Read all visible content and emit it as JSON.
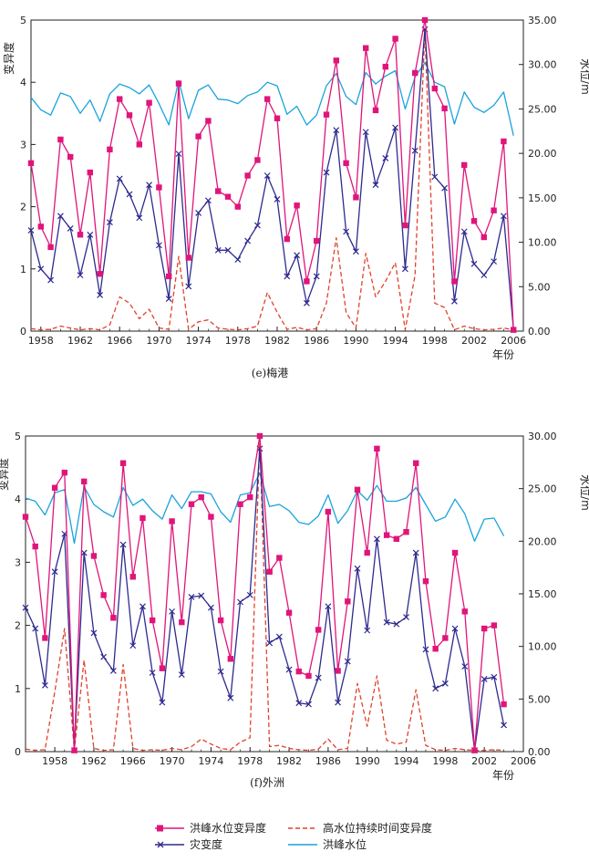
{
  "legend": {
    "items": [
      {
        "label": "洪峰水位变异度",
        "color": "#e0157a",
        "symbol": "square-line",
        "dash": "none"
      },
      {
        "label": "高水位持续时间变异度",
        "color": "#e2412b",
        "symbol": "line",
        "dash": "dashed"
      },
      {
        "label": "灾变度",
        "color": "#2e2a8e",
        "symbol": "x-line",
        "dash": "none"
      },
      {
        "label": "洪峰水位",
        "color": "#1aa3dc",
        "symbol": "line",
        "dash": "none"
      }
    ]
  },
  "chart_data": [
    {
      "type": "line",
      "caption": "(e)梅港",
      "xlabel": "年份",
      "ylabel_left": "变异度",
      "ylabel_right": "水位/m",
      "xlim": [
        1957,
        2007
      ],
      "ylim_left": [
        0,
        5
      ],
      "ylim_right": [
        0,
        35
      ],
      "x_ticks": [
        "1958",
        "1962",
        "1966",
        "1970",
        "1974",
        "1978",
        "1982",
        "1986",
        "1990",
        "1994",
        "1998",
        "2002",
        "2006"
      ],
      "y_left_ticks": [
        "0",
        "1",
        "2",
        "3",
        "4",
        "5"
      ],
      "y_right_ticks": [
        "0.00",
        "5.00",
        "10.00",
        "15.00",
        "20.00",
        "25.00",
        "30.00",
        "35.00"
      ],
      "x": [
        1957,
        1958,
        1959,
        1960,
        1961,
        1962,
        1963,
        1964,
        1965,
        1966,
        1967,
        1968,
        1969,
        1970,
        1971,
        1972,
        1973,
        1974,
        1975,
        1976,
        1977,
        1978,
        1979,
        1980,
        1981,
        1982,
        1983,
        1984,
        1985,
        1986,
        1987,
        1988,
        1989,
        1990,
        1991,
        1992,
        1993,
        1994,
        1995,
        1996,
        1997,
        1998,
        1999,
        2000,
        2001,
        2002,
        2003,
        2004,
        2005,
        2006,
        2007
      ],
      "series": [
        {
          "name": "洪峰水位变异度",
          "axis": "left",
          "color": "#e0157a",
          "values": [
            2.7,
            1.68,
            1.35,
            3.08,
            2.8,
            1.55,
            2.55,
            0.92,
            2.92,
            3.73,
            3.47,
            3.0,
            3.67,
            2.31,
            0.88,
            3.98,
            1.18,
            3.13,
            3.38,
            2.25,
            2.16,
            2.0,
            2.5,
            2.75,
            3.73,
            3.42,
            1.48,
            2.02,
            0.8,
            1.45,
            3.48,
            4.35,
            2.7,
            2.15,
            4.55,
            3.55,
            4.25,
            4.7,
            1.7,
            4.15,
            5.0,
            3.9,
            3.58,
            0.8,
            2.67,
            1.77,
            1.51,
            1.94,
            3.05,
            0.02,
            null
          ]
        },
        {
          "name": "灾变度",
          "axis": "left",
          "color": "#2e2a8e",
          "values": [
            1.62,
            1.0,
            0.82,
            1.85,
            1.65,
            0.9,
            1.55,
            0.58,
            1.75,
            2.45,
            2.2,
            1.82,
            2.35,
            1.38,
            0.52,
            2.85,
            0.72,
            1.9,
            2.1,
            1.3,
            1.3,
            1.15,
            1.45,
            1.7,
            2.5,
            2.12,
            0.88,
            1.22,
            0.45,
            0.88,
            2.55,
            3.23,
            1.6,
            1.28,
            3.2,
            2.35,
            2.78,
            3.27,
            1.0,
            2.9,
            4.85,
            2.48,
            2.3,
            0.48,
            1.6,
            1.08,
            0.9,
            1.12,
            1.85,
            0.02,
            null
          ]
        },
        {
          "name": "高水位持续时间变异度",
          "axis": "left",
          "color": "#e2412b",
          "dash": "dashed",
          "values": [
            0.04,
            0.02,
            0.03,
            0.08,
            0.05,
            0.02,
            0.04,
            0.02,
            0.1,
            0.55,
            0.45,
            0.2,
            0.35,
            0.05,
            0.03,
            1.2,
            0.03,
            0.15,
            0.18,
            0.05,
            0.03,
            0.02,
            0.04,
            0.08,
            0.62,
            0.3,
            0.03,
            0.06,
            0.02,
            0.04,
            0.45,
            1.5,
            0.3,
            0.05,
            1.25,
            0.55,
            0.8,
            1.1,
            0.02,
            0.9,
            4.85,
            0.45,
            0.38,
            0.02,
            0.08,
            0.04,
            0.02,
            0.03,
            0.05,
            0.02,
            null
          ]
        },
        {
          "name": "洪峰水位",
          "axis": "right",
          "color": "#1aa3dc",
          "values": [
            26.3,
            24.9,
            24.3,
            26.8,
            26.4,
            24.5,
            26.0,
            23.6,
            26.7,
            27.8,
            27.4,
            26.7,
            27.7,
            25.6,
            23.2,
            28.2,
            23.9,
            27.1,
            27.7,
            26.1,
            26.0,
            25.6,
            26.5,
            26.9,
            28.0,
            27.6,
            24.4,
            25.3,
            23.2,
            24.3,
            27.6,
            29.0,
            26.4,
            25.5,
            29.1,
            27.8,
            28.7,
            29.3,
            25.0,
            28.6,
            30.2,
            28.0,
            27.5,
            23.3,
            26.9,
            25.2,
            24.6,
            25.4,
            26.9,
            22.0,
            null
          ]
        }
      ]
    },
    {
      "type": "line",
      "caption": "(f)外洲",
      "xlabel": "年份",
      "ylabel_left": "变异度",
      "ylabel_right": "水位/m",
      "xlim": [
        1955,
        2006
      ],
      "ylim_left": [
        0,
        5
      ],
      "ylim_right": [
        0,
        30
      ],
      "x_ticks": [
        "1958",
        "1962",
        "1966",
        "1970",
        "1974",
        "1978",
        "1982",
        "1986",
        "1990",
        "1994",
        "1998",
        "2002",
        "2006"
      ],
      "y_left_ticks": [
        "0",
        "1",
        "2",
        "3",
        "4",
        "5"
      ],
      "y_right_ticks": [
        "0.00",
        "5.00",
        "10.00",
        "15.00",
        "20.00",
        "25.00",
        "30.00"
      ],
      "x": [
        1955,
        1956,
        1957,
        1958,
        1959,
        1960,
        1961,
        1962,
        1963,
        1964,
        1965,
        1966,
        1967,
        1968,
        1969,
        1970,
        1971,
        1972,
        1973,
        1974,
        1975,
        1976,
        1977,
        1978,
        1979,
        1980,
        1981,
        1982,
        1983,
        1984,
        1985,
        1986,
        1987,
        1988,
        1989,
        1990,
        1991,
        1992,
        1993,
        1994,
        1995,
        1996,
        1997,
        1998,
        1999,
        2000,
        2001,
        2002,
        2003,
        2004,
        2005,
        2006
      ],
      "series": [
        {
          "name": "洪峰水位变异度",
          "axis": "left",
          "color": "#e0157a",
          "values": [
            3.72,
            3.25,
            1.8,
            4.18,
            4.42,
            0.02,
            4.28,
            3.1,
            2.48,
            2.12,
            4.57,
            2.77,
            3.7,
            2.08,
            1.32,
            3.65,
            2.05,
            3.92,
            4.03,
            3.72,
            2.08,
            1.47,
            3.92,
            4.03,
            5.0,
            2.85,
            3.07,
            2.2,
            1.27,
            1.2,
            1.93,
            3.8,
            1.28,
            2.38,
            4.15,
            3.15,
            4.8,
            3.43,
            3.37,
            3.48,
            4.57,
            2.7,
            1.63,
            1.8,
            3.15,
            2.22,
            0.02,
            1.95,
            2.0,
            0.75,
            null,
            null
          ]
        },
        {
          "name": "灾变度",
          "axis": "left",
          "color": "#2e2a8e",
          "values": [
            2.28,
            1.95,
            1.05,
            2.85,
            3.45,
            0.02,
            3.15,
            1.88,
            1.5,
            1.28,
            3.28,
            1.68,
            2.3,
            1.25,
            0.78,
            2.22,
            1.22,
            2.45,
            2.47,
            2.28,
            1.27,
            0.85,
            2.37,
            2.48,
            4.8,
            1.72,
            1.82,
            1.3,
            0.77,
            0.75,
            1.17,
            2.3,
            0.78,
            1.43,
            2.9,
            1.92,
            3.37,
            2.05,
            2.02,
            2.13,
            3.15,
            1.62,
            1.0,
            1.08,
            1.95,
            1.35,
            0.02,
            1.15,
            1.18,
            0.42,
            null,
            null
          ]
        },
        {
          "name": "高水位持续时间变异度",
          "axis": "left",
          "color": "#e2412b",
          "dash": "dashed",
          "values": [
            0.04,
            0.02,
            0.03,
            0.95,
            1.95,
            0.02,
            1.45,
            0.05,
            0.02,
            0.03,
            1.38,
            0.05,
            0.02,
            0.03,
            0.02,
            0.05,
            0.03,
            0.08,
            0.2,
            0.12,
            0.05,
            0.03,
            0.15,
            0.22,
            4.95,
            0.08,
            0.1,
            0.05,
            0.03,
            0.02,
            0.04,
            0.2,
            0.03,
            0.05,
            1.08,
            0.4,
            1.2,
            0.18,
            0.12,
            0.15,
            0.98,
            0.1,
            0.03,
            0.02,
            0.05,
            0.03,
            0.02,
            0.02,
            0.03,
            0.02,
            null,
            null
          ]
        },
        {
          "name": "洪峰水位",
          "axis": "right",
          "color": "#1aa3dc",
          "values": [
            24.1,
            23.8,
            22.5,
            24.6,
            24.9,
            19.8,
            25.2,
            23.5,
            22.8,
            22.3,
            25.1,
            23.4,
            24.0,
            22.9,
            22.1,
            24.4,
            23.1,
            24.7,
            24.7,
            24.5,
            22.8,
            21.8,
            24.4,
            24.6,
            26.5,
            23.3,
            23.5,
            22.9,
            21.8,
            21.6,
            22.4,
            24.4,
            21.7,
            22.9,
            24.8,
            23.9,
            25.3,
            23.8,
            23.8,
            24.1,
            25.1,
            23.5,
            21.9,
            22.3,
            24.0,
            22.6,
            20.0,
            22.1,
            22.2,
            20.5,
            null,
            null
          ]
        }
      ]
    }
  ]
}
